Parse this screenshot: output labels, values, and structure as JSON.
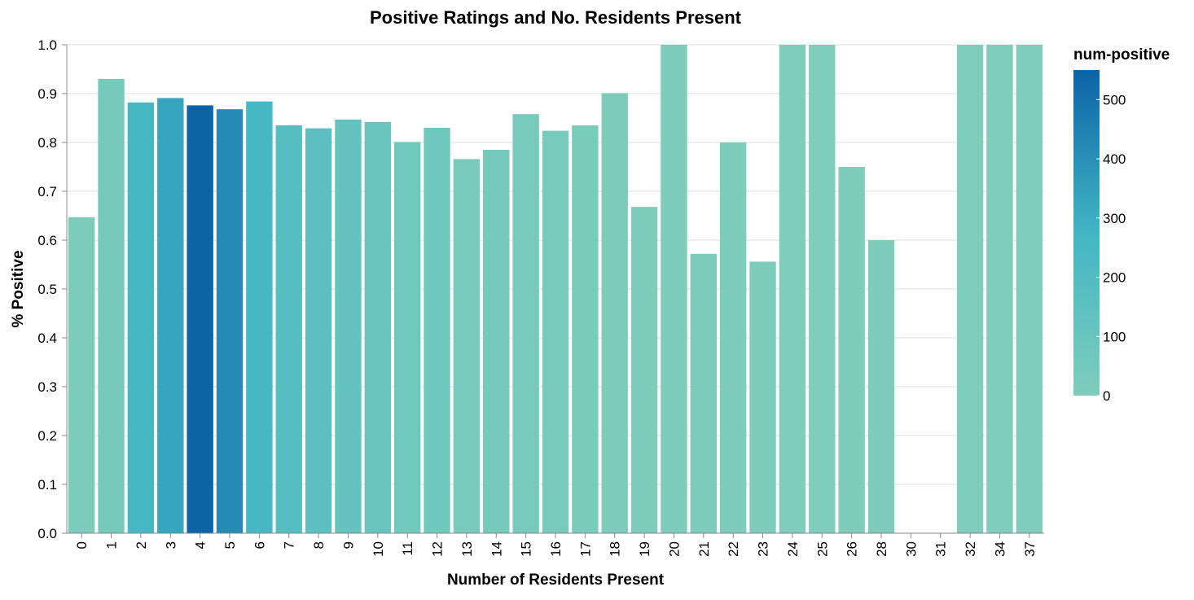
{
  "chart_data": {
    "type": "bar",
    "title": "Positive Ratings and No. Residents Present",
    "xlabel": "Number of Residents Present",
    "ylabel": "% Positive",
    "ylim": [
      0,
      1
    ],
    "grid": true,
    "y_ticks": [
      "0.0",
      "0.1",
      "0.2",
      "0.3",
      "0.4",
      "0.5",
      "0.6",
      "0.7",
      "0.8",
      "0.9",
      "1.0"
    ],
    "categories": [
      "0",
      "1",
      "2",
      "3",
      "4",
      "5",
      "6",
      "7",
      "8",
      "9",
      "10",
      "11",
      "12",
      "13",
      "14",
      "15",
      "16",
      "17",
      "18",
      "19",
      "20",
      "21",
      "22",
      "23",
      "24",
      "25",
      "26",
      "28",
      "30",
      "31",
      "32",
      "34",
      "37"
    ],
    "values": [
      0.647,
      0.93,
      0.882,
      0.891,
      0.876,
      0.868,
      0.884,
      0.835,
      0.829,
      0.847,
      0.842,
      0.801,
      0.83,
      0.766,
      0.785,
      0.858,
      0.824,
      0.835,
      0.901,
      0.668,
      1.0,
      0.572,
      0.8,
      0.556,
      1.0,
      1.0,
      0.75,
      0.6,
      0.0,
      0.0,
      1.0,
      1.0,
      1.0
    ],
    "color_values": [
      10,
      40,
      250,
      330,
      550,
      420,
      250,
      180,
      150,
      120,
      100,
      60,
      70,
      35,
      40,
      35,
      30,
      25,
      10,
      5,
      3,
      4,
      4,
      5,
      1,
      2,
      3,
      3,
      0,
      0,
      1,
      1,
      1
    ],
    "color_field": "num-positive",
    "color_ticks": [
      "0",
      "100",
      "200",
      "300",
      "400",
      "500"
    ],
    "color_scale": {
      "min": 0,
      "max": 550,
      "low": "#7fcdbb",
      "mid": "#41b6c4",
      "high": "#0c63a6"
    },
    "legend_position": "right"
  }
}
